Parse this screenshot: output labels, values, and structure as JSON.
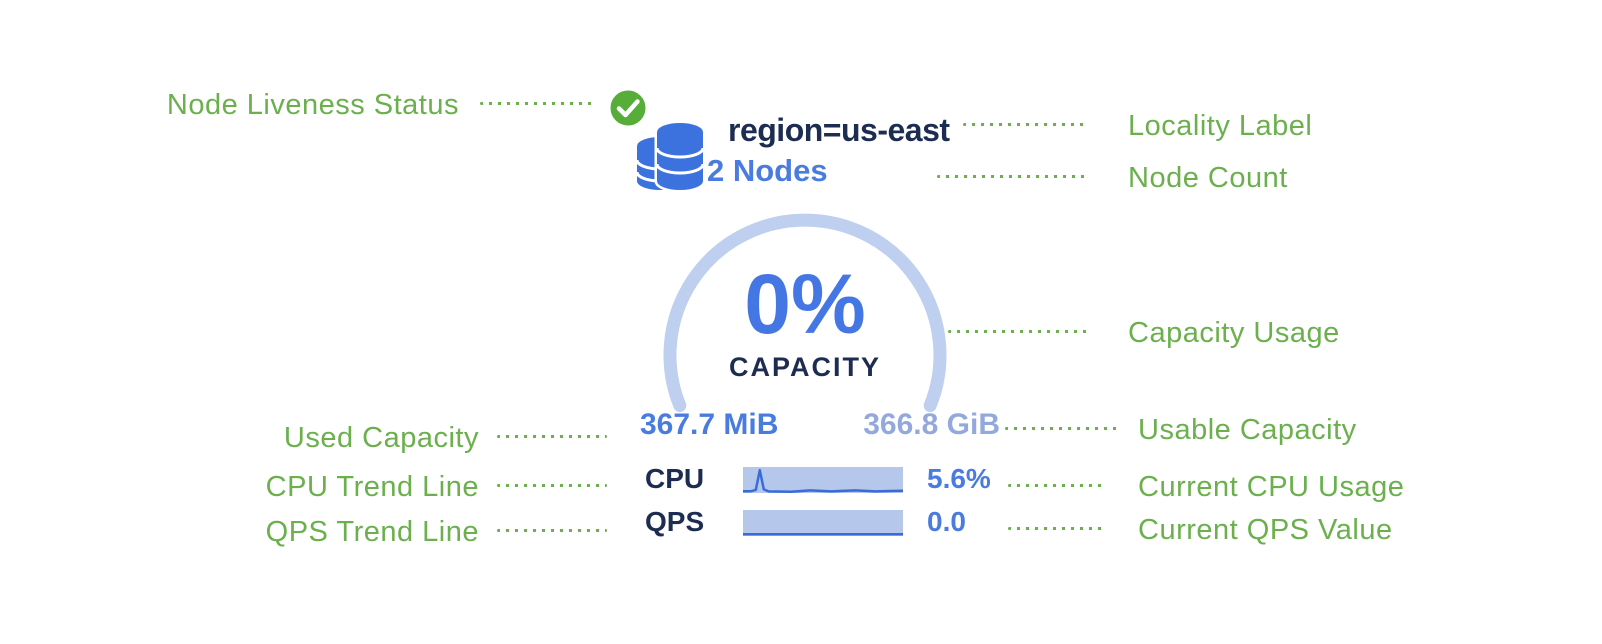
{
  "colors": {
    "annotation_green": "#6bb04d",
    "primary_blue": "#4577e4",
    "value_blue": "#4a7ce0",
    "muted_blue": "#93a9db",
    "navy": "#1d2d52",
    "arc_blue": "#bfcfef",
    "bar_fill": "#b5c8ec",
    "spark_line": "#3a6cd9",
    "liveness_green": "#57ad3a",
    "icon_blue": "#3b72de"
  },
  "node_card": {
    "locality_label": "region=us-east",
    "node_count": "2 Nodes",
    "capacity_percent": "0%",
    "capacity_caption": "CAPACITY",
    "used_capacity": "367.7 MiB",
    "usable_capacity": "366.8 GiB",
    "cpu": {
      "label": "CPU",
      "value": "5.6%",
      "spark": [
        [
          0,
          0.07
        ],
        [
          0.05,
          0.07
        ],
        [
          0.08,
          0.12
        ],
        [
          0.105,
          0.88
        ],
        [
          0.13,
          0.14
        ],
        [
          0.16,
          0.06
        ],
        [
          0.3,
          0.05
        ],
        [
          0.42,
          0.1
        ],
        [
          0.55,
          0.06
        ],
        [
          0.7,
          0.1
        ],
        [
          0.83,
          0.06
        ],
        [
          1,
          0.09
        ]
      ]
    },
    "qps": {
      "label": "QPS",
      "value": "0.0",
      "spark": [
        [
          0,
          0.07
        ],
        [
          1,
          0.07
        ]
      ]
    }
  },
  "annotations": {
    "node_liveness": "Node Liveness Status",
    "locality": "Locality Label",
    "node_count": "Node Count",
    "capacity_usage": "Capacity Usage",
    "used_capacity": "Used Capacity",
    "usable_capacity": "Usable Capacity",
    "cpu_trend": "CPU Trend Line",
    "current_cpu": "Current CPU Usage",
    "qps_trend": "QPS Trend Line",
    "current_qps": "Current QPS Value"
  }
}
